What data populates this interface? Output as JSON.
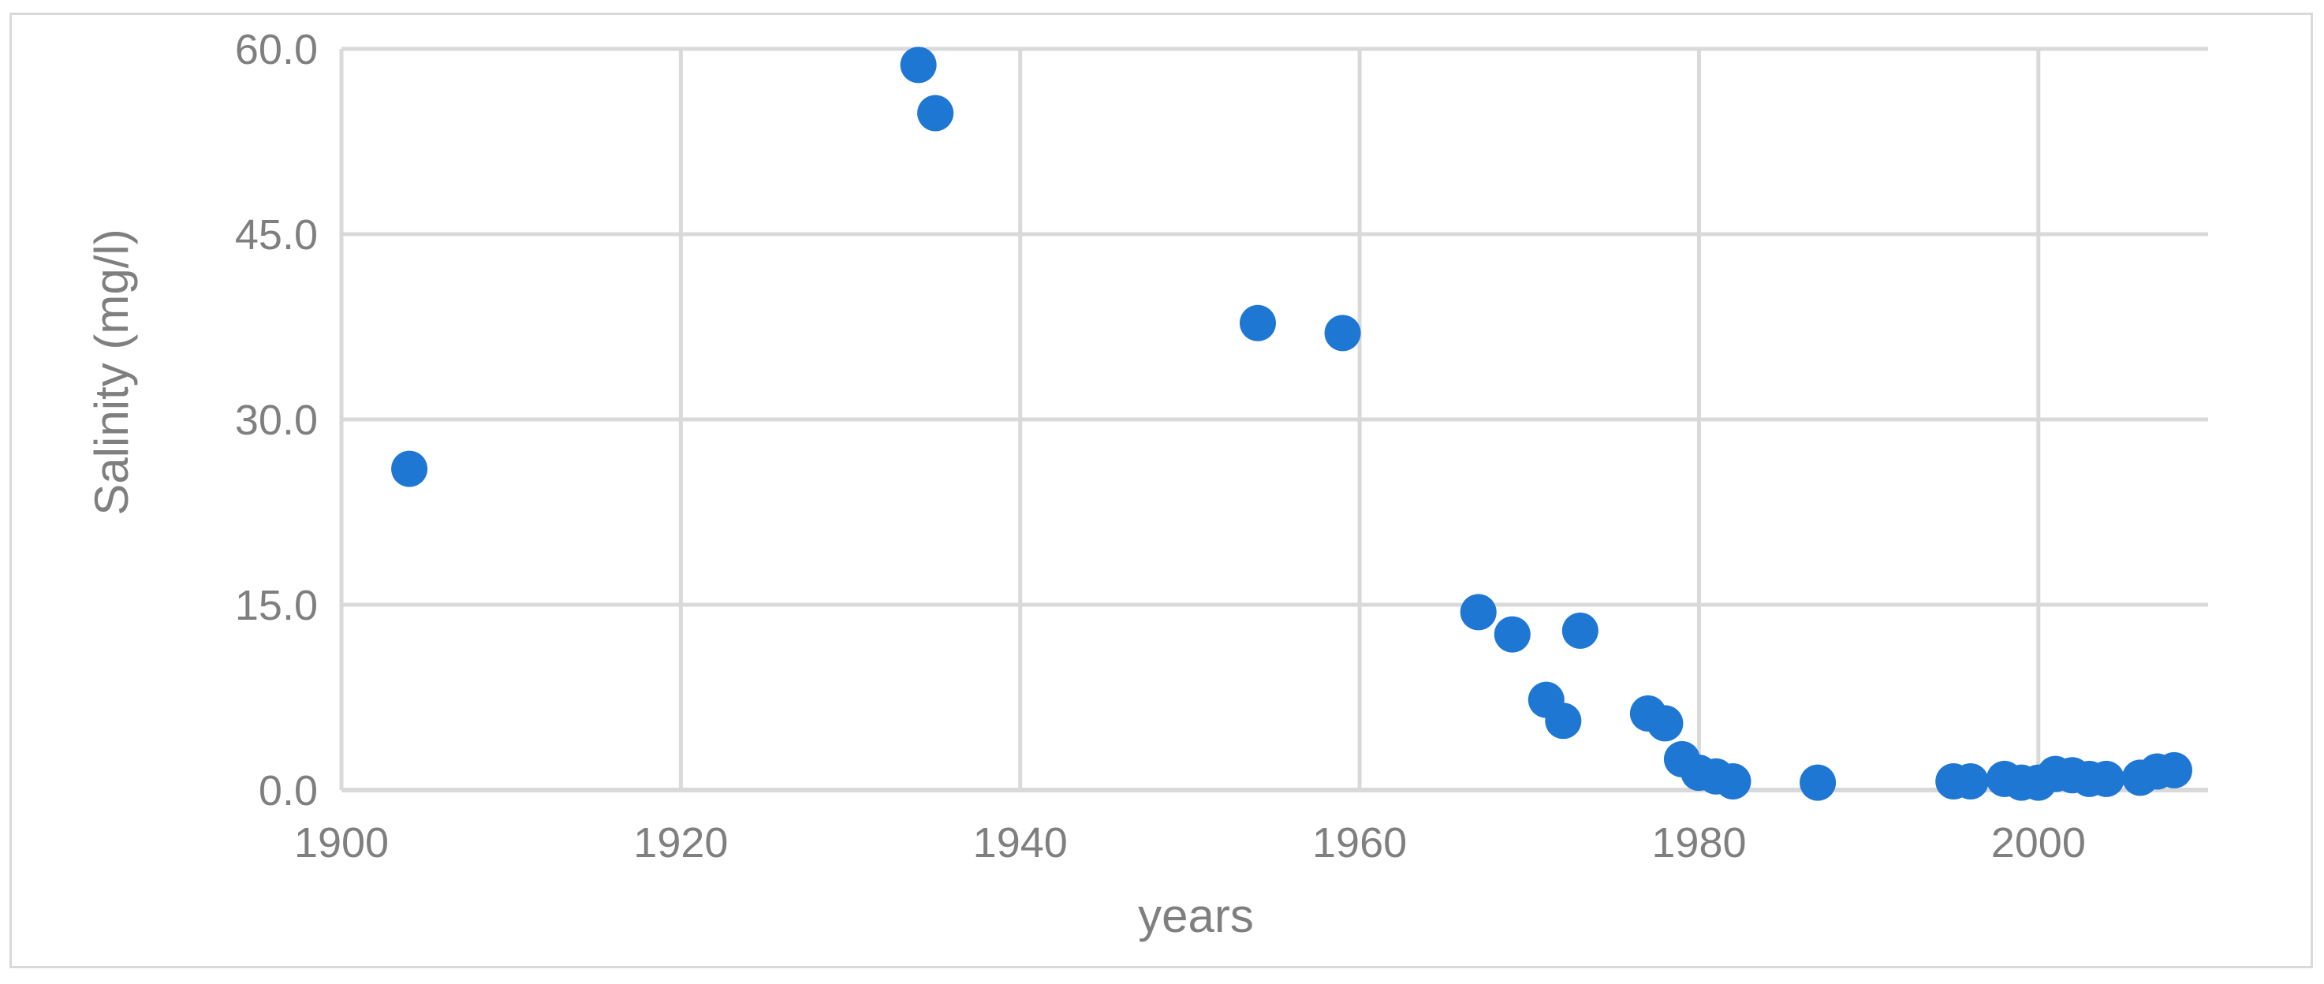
{
  "chart_data": {
    "type": "scatter",
    "title": "",
    "xlabel": "years",
    "ylabel": "Salinity (mg/l)",
    "xlim": [
      1900,
      2010
    ],
    "ylim": [
      0,
      60
    ],
    "x_ticks": [
      1900,
      1920,
      1940,
      1960,
      1980,
      2000
    ],
    "y_ticks": [
      "0.0",
      "15.0",
      "30.0",
      "45.0",
      "60.0"
    ],
    "y_tick_values": [
      0,
      15,
      30,
      45,
      60
    ],
    "grid": true,
    "legend": "none",
    "marker_color": "#1f77d4",
    "grid_color": "#d9d9d9",
    "series": [
      {
        "points": [
          [
            1904,
            26.0
          ],
          [
            1934,
            58.7
          ],
          [
            1935,
            54.8
          ],
          [
            1954,
            37.8
          ],
          [
            1959,
            37.0
          ],
          [
            1967,
            14.4
          ],
          [
            1969,
            12.6
          ],
          [
            1971,
            7.3
          ],
          [
            1972,
            5.6
          ],
          [
            1973,
            12.9
          ],
          [
            1977,
            6.2
          ],
          [
            1978,
            5.4
          ],
          [
            1979,
            2.5
          ],
          [
            1980,
            1.4
          ],
          [
            1981,
            1.1
          ],
          [
            1982,
            0.7
          ],
          [
            1987,
            0.6
          ],
          [
            1995,
            0.7
          ],
          [
            1996,
            0.7
          ],
          [
            1998,
            0.9
          ],
          [
            1999,
            0.6
          ],
          [
            2000,
            0.6
          ],
          [
            2001,
            1.3
          ],
          [
            2002,
            1.2
          ],
          [
            2003,
            0.9
          ],
          [
            2004,
            0.9
          ],
          [
            2006,
            1.0
          ],
          [
            2007,
            1.5
          ],
          [
            2008,
            1.6
          ]
        ]
      }
    ]
  }
}
